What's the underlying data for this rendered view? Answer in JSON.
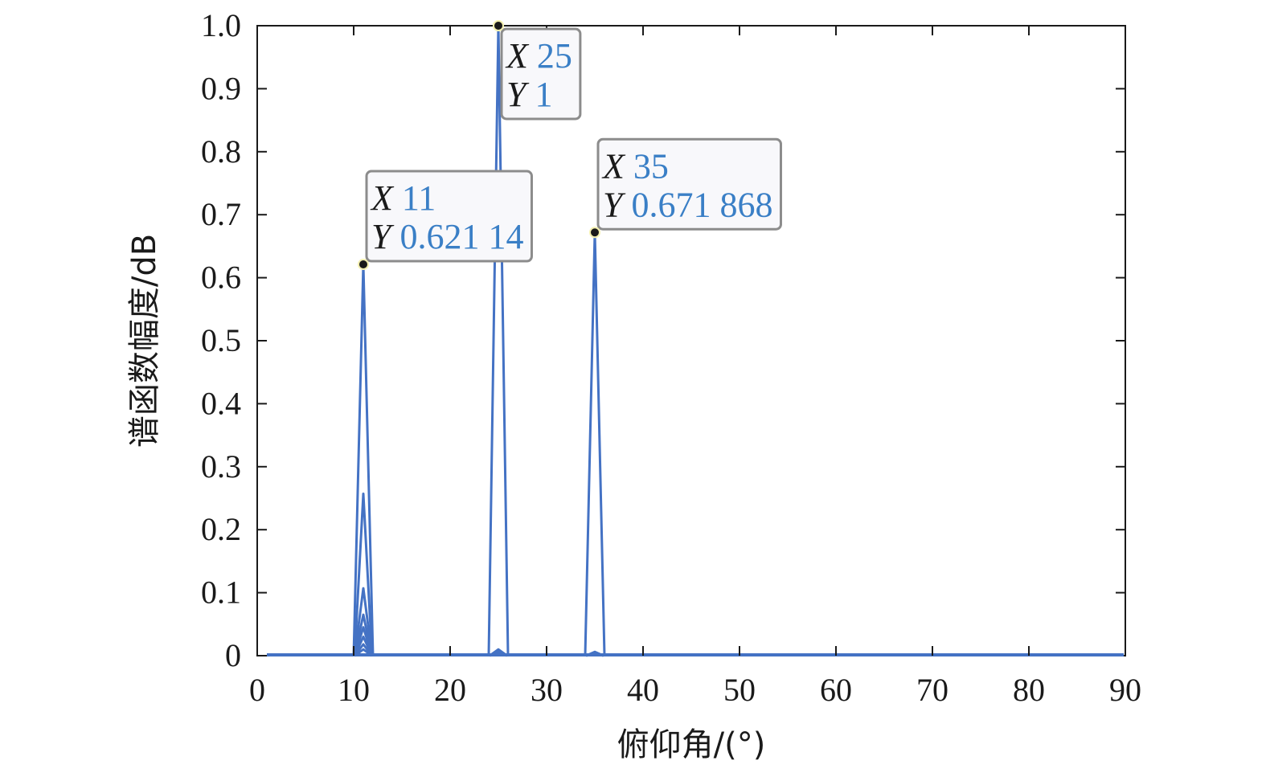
{
  "chart_data": {
    "type": "line",
    "xlabel": "俯仰角/(°)",
    "ylabel": "谱函数幅度/dB",
    "xlim": [
      0,
      90
    ],
    "ylim": [
      0,
      1.0
    ],
    "x_ticks": [
      "0",
      "10",
      "20",
      "30",
      "40",
      "50",
      "60",
      "70",
      "80",
      "90"
    ],
    "y_ticks": [
      "0",
      "0.1",
      "0.2",
      "0.3",
      "0.4",
      "0.5",
      "0.6",
      "0.7",
      "0.8",
      "0.9",
      "1.0"
    ],
    "grid": false,
    "line_color": "#4472c4",
    "peaks": [
      {
        "x": 11,
        "y": 0.62114,
        "minor_peaks": [
          0.257,
          0.107,
          0.065,
          0.045,
          0.03,
          0.018,
          0.01
        ]
      },
      {
        "x": 25,
        "y": 1.0,
        "minor_peaks": [
          0.01,
          0.006
        ]
      },
      {
        "x": 35,
        "y": 0.671868,
        "minor_peaks": [
          0.006,
          0.004
        ]
      }
    ],
    "annotations": [
      {
        "x": 11,
        "y": 0.62114,
        "x_key": "X",
        "x_text": "11",
        "y_key": "Y",
        "y_text": "0.621 14"
      },
      {
        "x": 25,
        "y": 1.0,
        "x_key": "X",
        "x_text": "25",
        "y_key": "Y",
        "y_text": "1"
      },
      {
        "x": 35,
        "y": 0.671868,
        "x_key": "X",
        "x_text": "35",
        "y_key": "Y",
        "y_text": "0.671 868"
      }
    ]
  }
}
